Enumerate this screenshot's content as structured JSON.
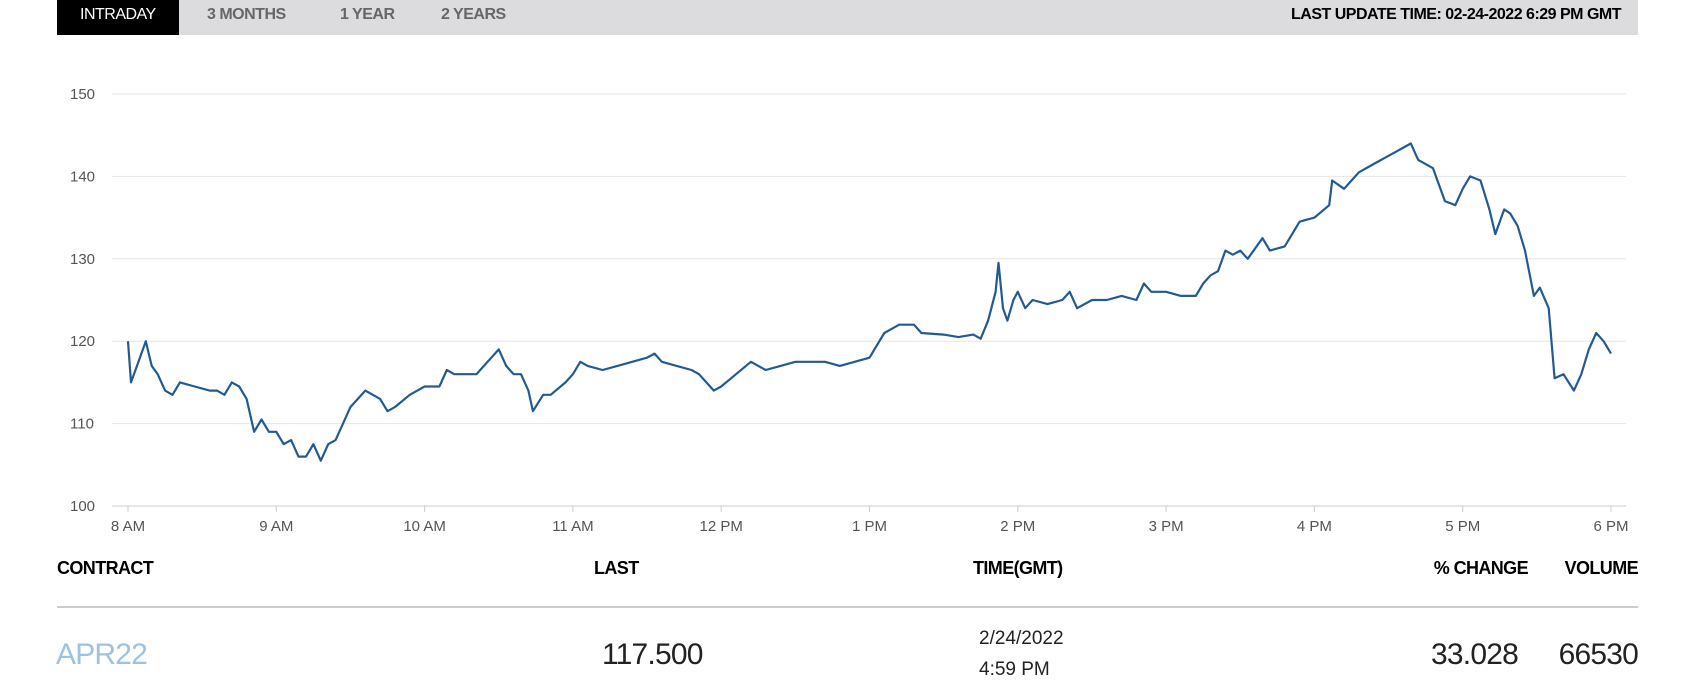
{
  "tabs": [
    "INTRADAY",
    "3 MONTHS",
    "1 YEAR",
    "2 YEARS"
  ],
  "last_update": "LAST UPDATE TIME: 02-24-2022 6:29 PM GMT",
  "chart_data": {
    "type": "line",
    "color": "#235a94",
    "grid": true,
    "x": [
      8.0,
      8.02,
      8.08,
      8.12,
      8.16,
      8.2,
      8.25,
      8.3,
      8.35,
      8.45,
      8.55,
      8.6,
      8.65,
      8.7,
      8.75,
      8.8,
      8.85,
      8.9,
      8.95,
      9.0,
      9.05,
      9.1,
      9.15,
      9.2,
      9.25,
      9.3,
      9.35,
      9.4,
      9.45,
      9.5,
      9.6,
      9.7,
      9.75,
      9.8,
      9.9,
      10.0,
      10.1,
      10.15,
      10.2,
      10.3,
      10.35,
      10.4,
      10.45,
      10.5,
      10.55,
      10.6,
      10.65,
      10.7,
      10.73,
      10.8,
      10.85,
      10.95,
      11.0,
      11.05,
      11.1,
      11.2,
      11.3,
      11.4,
      11.5,
      11.55,
      11.6,
      11.7,
      11.8,
      11.85,
      11.9,
      11.95,
      12.0,
      12.1,
      12.2,
      12.3,
      12.4,
      12.5,
      12.6,
      12.7,
      12.8,
      12.9,
      13.0,
      13.05,
      13.1,
      13.2,
      13.3,
      13.35,
      13.5,
      13.6,
      13.7,
      13.75,
      13.8,
      13.85,
      13.87,
      13.9,
      13.93,
      13.97,
      14.0,
      14.05,
      14.1,
      14.2,
      14.3,
      14.35,
      14.4,
      14.5,
      14.6,
      14.7,
      14.8,
      14.85,
      14.9,
      15.0,
      15.1,
      15.2,
      15.25,
      15.3,
      15.35,
      15.4,
      15.45,
      15.5,
      15.55,
      15.65,
      15.7,
      15.8,
      15.9,
      16.0,
      16.1,
      16.12,
      16.2,
      16.25,
      16.3,
      16.4,
      16.5,
      16.6,
      16.65,
      16.7,
      16.8,
      16.88,
      16.95,
      17.0,
      17.05,
      17.12,
      17.18,
      17.22,
      17.28,
      17.32,
      17.37,
      17.42,
      17.48,
      17.52,
      17.58,
      17.62,
      17.68,
      17.75,
      17.8,
      17.85,
      17.9,
      17.95,
      18.0
    ],
    "values": [
      120,
      115,
      118,
      120,
      117,
      116,
      114,
      113.5,
      115,
      114.5,
      114,
      114,
      113.5,
      115,
      114.5,
      113,
      109,
      110.5,
      109,
      109,
      107.5,
      108,
      106,
      106,
      107.5,
      105.5,
      107.5,
      108,
      110,
      112,
      114,
      113,
      111.5,
      112,
      113.5,
      114.5,
      114.5,
      116.5,
      116,
      116,
      116,
      117,
      118,
      119,
      117,
      116,
      116,
      114,
      111.5,
      113.5,
      113.5,
      115,
      116,
      117.5,
      117,
      116.5,
      117,
      117.5,
      118,
      118.5,
      117.5,
      117,
      116.5,
      116,
      115,
      114,
      114.5,
      116,
      117.5,
      116.5,
      117,
      117.5,
      117.5,
      117.5,
      117,
      117.5,
      118,
      119.5,
      121,
      122,
      122,
      121,
      120.8,
      120.5,
      120.8,
      120.3,
      122.5,
      126,
      129.5,
      124,
      122.5,
      125,
      126,
      124,
      125,
      124.5,
      125,
      126,
      124,
      125,
      125,
      125.5,
      125,
      127,
      126,
      126,
      125.5,
      125.5,
      127,
      128,
      128.5,
      131,
      130.5,
      131,
      130,
      132.5,
      131,
      131.5,
      134.5,
      135,
      136.5,
      139.5,
      138.5,
      139.5,
      140.5,
      141.5,
      142.5,
      143.5,
      144,
      142,
      141,
      137,
      136.5,
      138.5,
      140,
      139.5,
      136,
      133,
      136,
      135.5,
      134,
      131,
      125.5,
      126.5,
      124,
      115.5,
      116,
      114,
      116,
      119,
      121,
      120,
      118.5
    ],
    "xlim": [
      8,
      18
    ],
    "ylim": [
      100,
      150
    ],
    "xticks": [
      {
        "value": 8,
        "label": "8 AM"
      },
      {
        "value": 9,
        "label": "9 AM"
      },
      {
        "value": 10,
        "label": "10 AM"
      },
      {
        "value": 11,
        "label": "11 AM"
      },
      {
        "value": 12,
        "label": "12 PM"
      },
      {
        "value": 13,
        "label": "1 PM"
      },
      {
        "value": 14,
        "label": "2 PM"
      },
      {
        "value": 15,
        "label": "3 PM"
      },
      {
        "value": 16,
        "label": "4 PM"
      },
      {
        "value": 17,
        "label": "5 PM"
      },
      {
        "value": 18,
        "label": "6 PM"
      }
    ],
    "yticks": [
      100,
      110,
      120,
      130,
      140,
      150
    ]
  },
  "table": {
    "headers": [
      "CONTRACT",
      "LAST",
      "TIME(GMT)",
      "% CHANGE",
      "VOLUME"
    ],
    "rows": [
      [
        "APR22",
        "117.500",
        [
          "2/24/2022",
          "4:59 PM"
        ],
        "33.028",
        "66530"
      ]
    ]
  }
}
